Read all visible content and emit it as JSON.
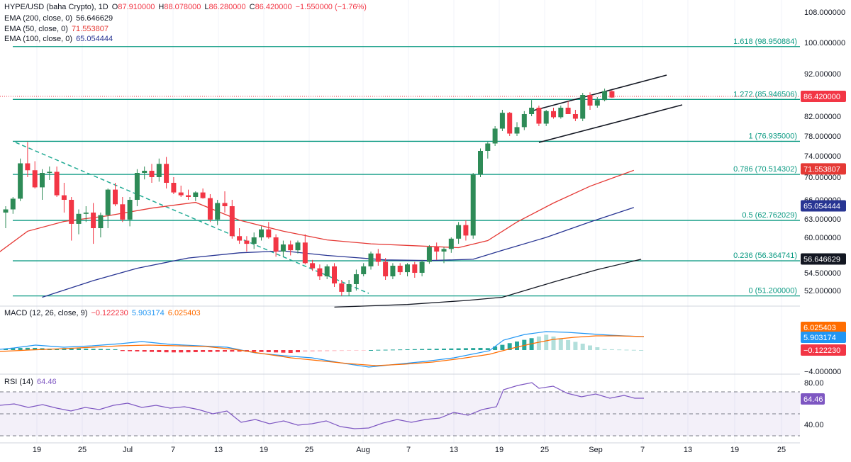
{
  "header": {
    "symbol": "HYPE/USD (baha Crypto), 1D",
    "o_label": "O",
    "o_value": "87.910000",
    "h_label": "H",
    "h_value": "88.078000",
    "l_label": "L",
    "l_value": "86.280000",
    "c_label": "C",
    "c_value": "86.420000",
    "change": "−1.550000 (−1.76%)"
  },
  "ema_legends": [
    {
      "label": "EMA (200, close, 0)",
      "value": "56.646629",
      "color": "#131722"
    },
    {
      "label": "EMA (50, close, 0)",
      "value": "71.553807",
      "color": "#e53935"
    },
    {
      "label": "EMA (100, close, 0)",
      "value": "65.054444",
      "color": "#283593"
    }
  ],
  "colors": {
    "up": "#26a69a",
    "up_body": "#2e8b57",
    "down": "#f23645",
    "fib": "#089981",
    "ema200": "#131722",
    "ema50": "#e53935",
    "ema100": "#283593",
    "macd": "#2196f3",
    "signal": "#ff6d00",
    "rsi": "#7e57c2",
    "trend": "#22ab94"
  },
  "chart_data": [
    {
      "type": "candlestick",
      "name": "price",
      "x_axis_labels": [
        "19",
        "25",
        "Jul",
        "7",
        "13",
        "19",
        "25",
        "Aug",
        "7",
        "13",
        "19",
        "25",
        "Sep",
        "7",
        "13",
        "19",
        "25"
      ],
      "y_axis_labels": [
        "108.000000",
        "100.000000",
        "92.000000",
        "82.000000",
        "78.000000",
        "74.000000",
        "70.000000",
        "66.000000",
        "63.000000",
        "60.000000",
        "54.500000",
        "52.000000"
      ],
      "ylim": [
        50,
        110
      ],
      "last_price": "86.420000",
      "fib_levels": [
        {
          "label": "1.618 (98.950884)",
          "value": 98.950884
        },
        {
          "label": "1.272 (85.946506)",
          "value": 85.946506
        },
        {
          "label": "1 (76.935000)",
          "value": 76.935
        },
        {
          "label": "0.786 (70.514302)",
          "value": 70.514302
        },
        {
          "label": "0.5 (62.762029)",
          "value": 62.762029
        },
        {
          "label": "0.236 (56.364741)",
          "value": 56.364741
        },
        {
          "label": "0 (51.200000)",
          "value": 51.2
        }
      ],
      "ema_tags": [
        {
          "label": "71.553807",
          "value": 71.553807,
          "color": "#e53935"
        },
        {
          "label": "65.054444",
          "value": 65.054444,
          "color": "#283593"
        },
        {
          "label": "56.646629",
          "value": 56.646629,
          "color": "#131722"
        }
      ],
      "candles": [
        [
          64.0,
          65.0,
          61.5,
          64.5
        ],
        [
          64.5,
          66.5,
          63.8,
          66.2
        ],
        [
          66.2,
          73.5,
          65.8,
          72.6
        ],
        [
          72.6,
          76.8,
          70.0,
          71.3
        ],
        [
          71.3,
          73.0,
          68.0,
          68.2
        ],
        [
          68.2,
          71.5,
          66.0,
          70.8
        ],
        [
          70.8,
          72.0,
          69.5,
          71.0
        ],
        [
          71.0,
          72.0,
          66.5,
          66.8
        ],
        [
          66.8,
          69.0,
          64.0,
          66.0
        ],
        [
          66.0,
          66.5,
          59.5,
          62.2
        ],
        [
          62.2,
          64.5,
          60.5,
          63.8
        ],
        [
          63.8,
          65.0,
          62.5,
          64.0
        ],
        [
          64.0,
          65.5,
          59.0,
          61.5
        ],
        [
          61.5,
          64.0,
          60.0,
          63.6
        ],
        [
          63.6,
          68.0,
          61.5,
          67.8
        ],
        [
          67.8,
          69.0,
          65.0,
          65.3
        ],
        [
          65.3,
          66.5,
          62.5,
          62.9
        ],
        [
          62.9,
          66.5,
          61.8,
          66.0
        ],
        [
          66.0,
          71.5,
          65.0,
          70.8
        ],
        [
          70.8,
          72.0,
          69.6,
          71.2
        ],
        [
          71.2,
          72.5,
          69.0,
          70.0
        ],
        [
          70.0,
          73.5,
          69.2,
          72.5
        ],
        [
          72.5,
          73.8,
          68.0,
          69.0
        ],
        [
          69.0,
          70.0,
          67.0,
          67.3
        ],
        [
          67.3,
          68.5,
          66.5,
          66.8
        ],
        [
          66.8,
          67.8,
          66.0,
          66.5
        ],
        [
          66.5,
          67.5,
          65.8,
          67.3
        ],
        [
          67.3,
          68.0,
          66.2,
          66.3
        ],
        [
          66.3,
          67.0,
          62.5,
          62.9
        ],
        [
          62.9,
          66.0,
          62.0,
          65.5
        ],
        [
          65.5,
          67.5,
          64.0,
          65.0
        ],
        [
          65.0,
          66.0,
          59.8,
          60.2
        ],
        [
          60.2,
          61.5,
          59.0,
          59.5
        ],
        [
          59.5,
          60.2,
          57.8,
          59.0
        ],
        [
          59.0,
          60.8,
          58.2,
          60.0
        ],
        [
          60.0,
          61.8,
          59.5,
          61.3
        ],
        [
          61.3,
          62.5,
          59.8,
          60.0
        ],
        [
          60.0,
          60.5,
          57.0,
          57.8
        ],
        [
          57.8,
          59.5,
          57.0,
          58.9
        ],
        [
          58.9,
          59.5,
          57.2,
          58.0
        ],
        [
          58.0,
          59.5,
          57.5,
          59.2
        ],
        [
          59.2,
          60.5,
          55.8,
          56.0
        ],
        [
          56.0,
          56.5,
          54.8,
          55.2
        ],
        [
          55.2,
          55.8,
          53.5,
          54.0
        ],
        [
          54.0,
          55.8,
          53.6,
          55.5
        ],
        [
          55.5,
          56.0,
          52.5,
          53.0
        ],
        [
          53.0,
          53.5,
          51.2,
          51.8
        ],
        [
          51.8,
          53.5,
          51.2,
          52.9
        ],
        [
          52.9,
          55.0,
          52.0,
          54.3
        ],
        [
          54.3,
          56.0,
          54.0,
          55.5
        ],
        [
          55.5,
          57.8,
          55.0,
          57.5
        ],
        [
          57.5,
          58.2,
          55.6,
          56.2
        ],
        [
          56.2,
          56.8,
          53.5,
          54.0
        ],
        [
          54.0,
          56.0,
          53.6,
          55.6
        ],
        [
          55.6,
          56.0,
          54.2,
          54.6
        ],
        [
          54.6,
          56.0,
          54.0,
          55.8
        ],
        [
          55.8,
          56.2,
          53.8,
          54.5
        ],
        [
          54.5,
          56.5,
          54.0,
          56.2
        ],
        [
          56.2,
          58.8,
          55.9,
          58.5
        ],
        [
          58.5,
          59.2,
          56.5,
          57.8
        ],
        [
          57.8,
          58.5,
          56.0,
          58.2
        ],
        [
          58.2,
          60.0,
          57.6,
          59.8
        ],
        [
          59.8,
          62.5,
          59.0,
          62.0
        ],
        [
          62.0,
          62.8,
          59.5,
          60.3
        ],
        [
          60.3,
          70.8,
          59.8,
          70.5
        ],
        [
          70.5,
          75.5,
          70.0,
          75.0
        ],
        [
          75.0,
          76.8,
          73.5,
          76.5
        ],
        [
          76.5,
          80.0,
          76.0,
          79.5
        ],
        [
          79.5,
          83.5,
          79.0,
          82.8
        ],
        [
          82.8,
          83.0,
          78.0,
          78.5
        ],
        [
          78.5,
          80.8,
          78.0,
          79.8
        ],
        [
          79.8,
          83.2,
          79.2,
          82.5
        ],
        [
          82.5,
          85.8,
          82.0,
          84.0
        ],
        [
          84.0,
          84.5,
          80.0,
          80.5
        ],
        [
          80.5,
          83.5,
          80.0,
          83.2
        ],
        [
          83.2,
          84.0,
          81.5,
          81.8
        ],
        [
          81.8,
          84.5,
          81.5,
          84.0
        ],
        [
          84.0,
          85.5,
          82.5,
          82.5
        ],
        [
          82.5,
          83.5,
          81.0,
          81.5
        ],
        [
          81.5,
          87.5,
          81.0,
          87.0
        ],
        [
          87.0,
          87.6,
          83.5,
          84.5
        ],
        [
          84.5,
          86.5,
          84.0,
          85.8
        ],
        [
          85.8,
          88.5,
          85.5,
          87.9
        ],
        [
          87.9,
          88.1,
          86.3,
          86.4
        ]
      ],
      "ema200": [
        [
          0,
          49.4
        ],
        [
          80,
          50.0
        ],
        [
          140,
          49.8
        ],
        [
          200,
          50.3
        ],
        [
          230,
          51.0
        ]
      ],
      "ema50": [
        [
          0,
          47.0
        ],
        [
          30,
          48.0
        ],
        [
          45,
          49.0
        ],
        [
          50,
          49.5
        ],
        [
          55,
          49.8
        ],
        [
          60,
          50.5
        ],
        [
          66,
          53.0
        ],
        [
          75,
          56.5
        ],
        [
          83,
          60.5
        ]
      ],
      "ema100": [
        [
          0,
          50.0
        ],
        [
          20,
          51.5
        ],
        [
          35,
          52.0
        ],
        [
          50,
          52.3
        ],
        [
          60,
          52.5
        ],
        [
          65,
          53.0
        ],
        [
          75,
          56.5
        ],
        [
          83,
          60.8
        ]
      ]
    },
    {
      "type": "bar+line",
      "name": "macd",
      "legend": {
        "label": "MACD (12, 26, close, 9)",
        "hist": "−0.122230",
        "macd": "5.903174",
        "signal": "6.025403"
      },
      "y_axis_labels": [
        "4.000000",
        "−4.000000"
      ],
      "tags": [
        {
          "label": "6.025403",
          "color": "#ff6d00"
        },
        {
          "label": "5.903174",
          "color": "#2196f3"
        },
        {
          "label": "−0.122230",
          "color": "#f23645"
        }
      ]
    },
    {
      "type": "line",
      "name": "rsi",
      "legend": {
        "label": "RSI (14)",
        "value": "64.46"
      },
      "y_axis_labels": [
        "80.00",
        "40.00"
      ],
      "tag": "64.46"
    }
  ]
}
